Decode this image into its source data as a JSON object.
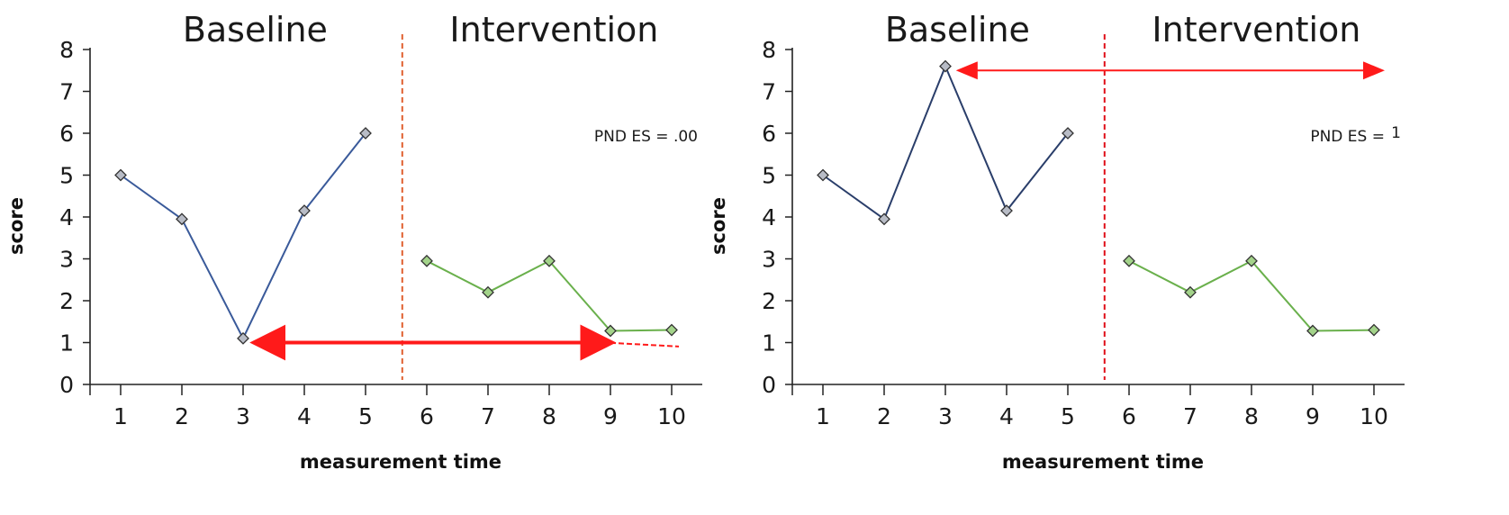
{
  "chart_data": [
    {
      "type": "line",
      "phase_labels": [
        "Baseline",
        "Intervention"
      ],
      "x": [
        1,
        2,
        3,
        4,
        5,
        6,
        7,
        8,
        9,
        10
      ],
      "xlabel": "measurement time",
      "ylabel": "score",
      "xlim": [
        0.5,
        10.5
      ],
      "ylim": [
        0,
        8
      ],
      "yticks": [
        0,
        1,
        2,
        3,
        4,
        5,
        6,
        7,
        8
      ],
      "phase_change_x": 5.6,
      "series": [
        {
          "phase": "Baseline",
          "color": "#3a5a9a",
          "marker_color": "#b8bcc6",
          "x": [
            1,
            2,
            3,
            4,
            5
          ],
          "values": [
            5.0,
            3.95,
            1.1,
            4.15,
            6.0
          ]
        },
        {
          "phase": "Intervention",
          "color": "#6ab04c",
          "marker_color": "#a3d38a",
          "x": [
            6,
            7,
            8,
            9,
            10
          ],
          "values": [
            2.95,
            2.2,
            2.95,
            1.28,
            1.3
          ]
        }
      ],
      "annotation_text": "PND ES = .00",
      "arrow": {
        "x_from": 3.4,
        "x_to": 8.8,
        "y": 1.0,
        "color": "#ff1a1a"
      },
      "dashed_segment": {
        "x_from": 9.0,
        "x_to": 10.0,
        "y": 0.95,
        "color": "#ff1a1a"
      },
      "divider_color": "#e06030"
    },
    {
      "type": "line",
      "phase_labels": [
        "Baseline",
        "Intervention"
      ],
      "x": [
        1,
        2,
        3,
        4,
        5,
        6,
        7,
        8,
        9,
        10
      ],
      "xlabel": "measurement time",
      "ylabel": "score",
      "xlim": [
        0.5,
        10.5
      ],
      "ylim": [
        0,
        8
      ],
      "yticks": [
        0,
        1,
        2,
        3,
        4,
        5,
        6,
        7,
        8
      ],
      "phase_change_x": 5.6,
      "series": [
        {
          "phase": "Baseline",
          "color": "#2a3e6a",
          "marker_color": "#b8bcc6",
          "x": [
            1,
            2,
            3,
            4,
            5
          ],
          "values": [
            5.0,
            3.95,
            7.6,
            4.15,
            6.0
          ]
        },
        {
          "phase": "Intervention",
          "color": "#6ab04c",
          "marker_color": "#a3d38a",
          "x": [
            6,
            7,
            8,
            9,
            10
          ],
          "values": [
            2.95,
            2.2,
            2.95,
            1.28,
            1.3
          ]
        }
      ],
      "annotation_text": "PND ES = ",
      "annotation_value": "1",
      "arrow": {
        "x_from": 3.35,
        "x_to": 10.0,
        "y": 7.5,
        "color": "#ff1a1a"
      },
      "divider_color": "#e0101a"
    }
  ]
}
